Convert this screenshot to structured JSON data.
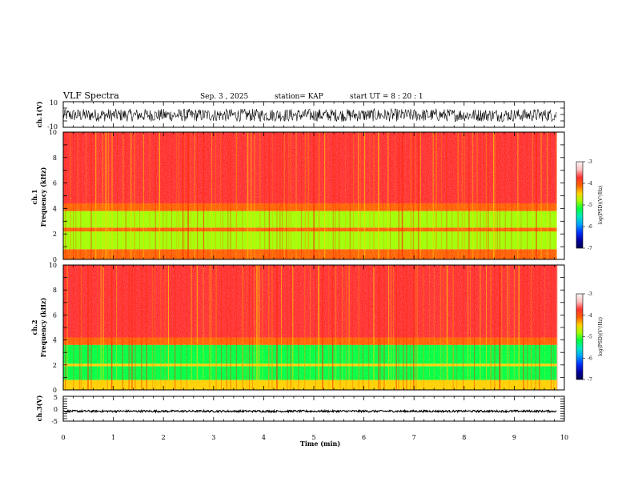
{
  "header": {
    "title": "VLF Spectra",
    "date": "Sep. 3  , 2025",
    "station": "station= KAP",
    "start": "start  UT  =   8  : 20 : 1"
  },
  "panels": {
    "ch1_wave": {
      "label": "ch.1(V)",
      "ymax": "10",
      "ymin": "-10"
    },
    "ch1_spec": {
      "label1": "ch.1",
      "label2": "Frequency  (kHz)"
    },
    "ch2_spec": {
      "label1": "ch.2",
      "label2": "Frequency  (kHz)"
    },
    "ch3_wave": {
      "label": "ch.3(V)",
      "ymax": "5",
      "ymid": "0",
      "ymin": "-5"
    }
  },
  "xaxis": {
    "label": "Time  (min)",
    "ticks": [
      "0",
      "1",
      "2",
      "3",
      "4",
      "5",
      "6",
      "7",
      "8",
      "9",
      "10"
    ]
  },
  "freq_ticks": [
    "0",
    "2",
    "4",
    "6",
    "8",
    "10"
  ],
  "colorbar": {
    "label": "log(PSD)(V²/Hz)",
    "ticks": [
      "-3",
      "-4",
      "-5",
      "-6",
      "-7"
    ],
    "colors": [
      "#fff5f5",
      "#ffc0c0",
      "#ff3030",
      "#ff6000",
      "#ffd000",
      "#a0ff00",
      "#00ff40",
      "#00e8c0",
      "#00a0ff",
      "#0030ff",
      "#0000a0",
      "#000050"
    ]
  },
  "chart_data": [
    {
      "type": "line",
      "title": "ch.1(V)",
      "xlabel": "Time  (min)",
      "xlim": [
        0,
        10
      ],
      "ylim": [
        -10,
        10
      ],
      "data_extent_min": 9.85,
      "y_typical_range": [
        -5.5,
        4.5
      ]
    },
    {
      "type": "heatmap",
      "title": "ch.1",
      "xlabel": "Time  (min)",
      "ylabel": "Frequency  (kHz)",
      "xlim": [
        0,
        10
      ],
      "ylim": [
        0,
        10
      ],
      "zlabel": "log(PSD)(V²/Hz)",
      "zlim": [
        -7,
        -3
      ],
      "bands_khz": [
        {
          "from": 0,
          "to": 0.8,
          "log_psd": -4.2
        },
        {
          "from": 0.8,
          "to": 2.2,
          "log_psd": -4.9
        },
        {
          "from": 2.2,
          "to": 2.5,
          "log_psd": -4.2
        },
        {
          "from": 2.5,
          "to": 3.8,
          "log_psd": -4.9
        },
        {
          "from": 3.8,
          "to": 4.4,
          "log_psd": -4.1
        },
        {
          "from": 4.4,
          "to": 10,
          "log_psd": -3.7
        }
      ]
    },
    {
      "type": "heatmap",
      "title": "ch.2",
      "xlabel": "Time  (min)",
      "ylabel": "Frequency  (kHz)",
      "xlim": [
        0,
        10
      ],
      "ylim": [
        0,
        10
      ],
      "zlabel": "log(PSD)(V²/Hz)",
      "zlim": [
        -7,
        -3
      ],
      "bands_khz": [
        {
          "from": 0,
          "to": 0.8,
          "log_psd": -4.3
        },
        {
          "from": 0.8,
          "to": 1.9,
          "log_psd": -5.0
        },
        {
          "from": 1.9,
          "to": 2.1,
          "log_psd": -4.3
        },
        {
          "from": 2.1,
          "to": 3.6,
          "log_psd": -5.1
        },
        {
          "from": 3.6,
          "to": 4.2,
          "log_psd": -4.2
        },
        {
          "from": 4.2,
          "to": 10,
          "log_psd": -3.8
        }
      ]
    },
    {
      "type": "line",
      "title": "ch.3(V)",
      "xlabel": "Time  (min)",
      "xlim": [
        0,
        10
      ],
      "ylim": [
        -5,
        5
      ],
      "data_extent_min": 9.85,
      "y_typical_range": [
        -1.4,
        -0.6
      ]
    }
  ]
}
